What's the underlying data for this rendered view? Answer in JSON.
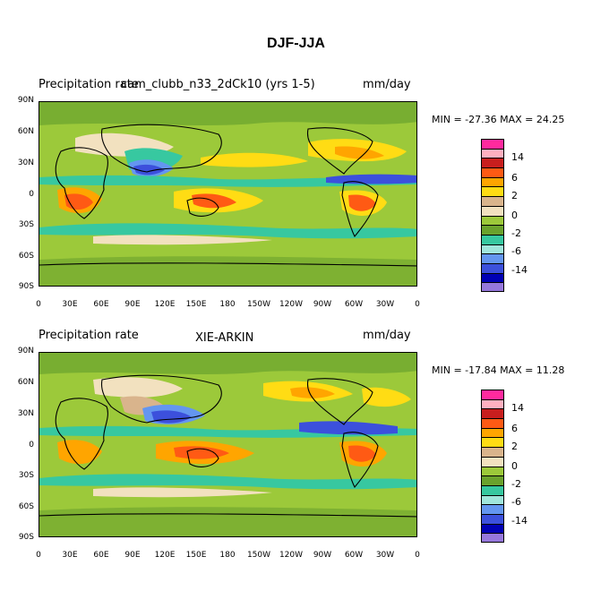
{
  "figure_title": "DJF-JJA",
  "panels": [
    {
      "left_title": "Precipitation rate",
      "center_title": "cam_clubb_n33_2dCk10 (yrs 1-5)",
      "units": "mm/day",
      "min_max": "MIN = -27.36  MAX =  24.25"
    },
    {
      "left_title": "Precipitation rate",
      "center_title": "XIE-ARKIN",
      "units": "mm/day",
      "min_max": "MIN = -17.84  MAX =  11.28"
    }
  ],
  "lat_labels": [
    "90N",
    "60N",
    "30N",
    "0",
    "30S",
    "60S",
    "90S"
  ],
  "lon_labels": [
    "0",
    "30E",
    "60E",
    "90E",
    "120E",
    "150E",
    "180",
    "150W",
    "120W",
    "90W",
    "60W",
    "30W",
    "0"
  ],
  "legend": {
    "colors": [
      "#ff2a9e",
      "#ffb0c0",
      "#c81e1e",
      "#ff5a14",
      "#ffa500",
      "#ffdc14",
      "#d9b48c",
      "#f2e1bf",
      "#9cc93a",
      "#6aa22d",
      "#37c8a0",
      "#a0e6dc",
      "#6496f0",
      "#3c50dc",
      "#0000b4",
      "#9678dc"
    ],
    "labels": [
      "14",
      "6",
      "2",
      "0",
      "-2",
      "-6",
      "-14"
    ]
  }
}
